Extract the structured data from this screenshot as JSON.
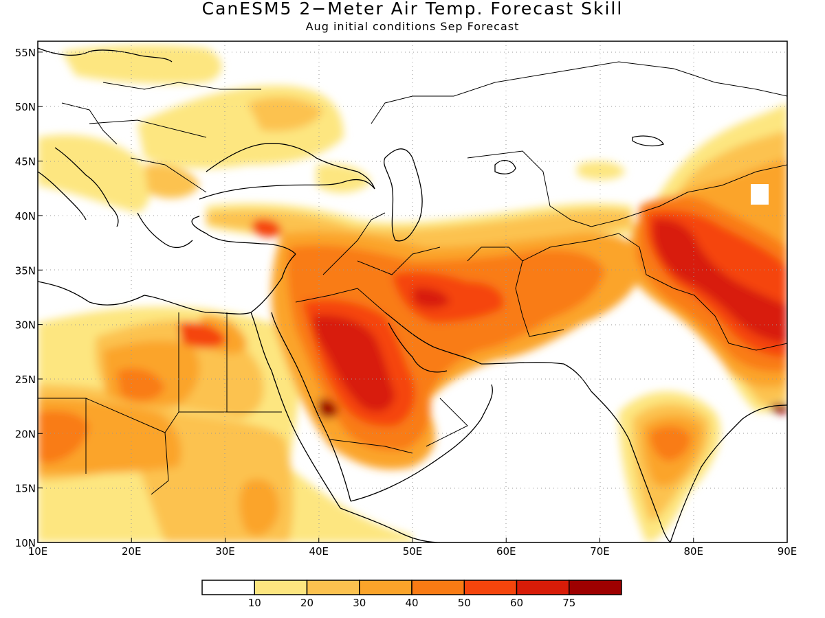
{
  "map": {
    "title": "CanESM5 2−Meter Air Temp. Forecast Skill",
    "subtitle": "Aug initial conditions   Sep Forecast",
    "lon_range": [
      10,
      90
    ],
    "lat_range": [
      10,
      56
    ],
    "x_ticks": [
      "10E",
      "20E",
      "30E",
      "40E",
      "50E",
      "60E",
      "70E",
      "80E",
      "90E"
    ],
    "y_ticks": [
      "10N",
      "15N",
      "20N",
      "25N",
      "30N",
      "35N",
      "40N",
      "45N",
      "50N",
      "55N"
    ],
    "grid": "dotted",
    "legend": {
      "placement": "bottom-center",
      "labels": [
        "10",
        "20",
        "30",
        "40",
        "50",
        "60",
        "75"
      ],
      "colors": [
        "#ffffff",
        "#fde680",
        "#fcc24f",
        "#fba42a",
        "#f97b14",
        "#f5450c",
        "#d81c08",
        "#9e0000"
      ]
    }
  }
}
